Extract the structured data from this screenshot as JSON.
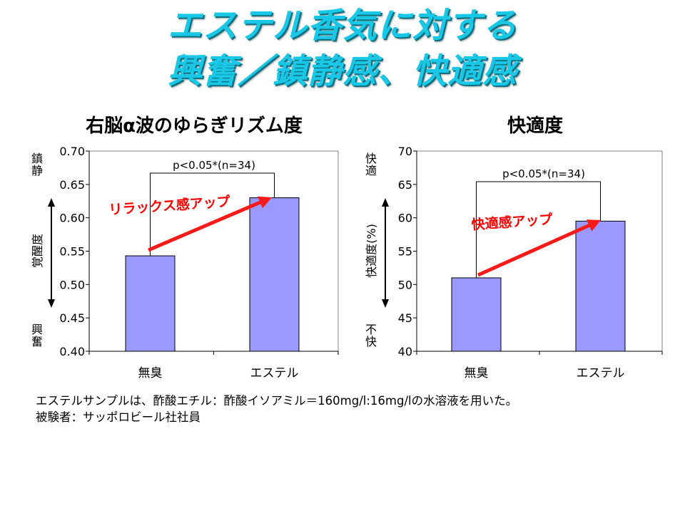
{
  "title": {
    "line1": "エステル香気に対する",
    "line2": "興奮／鎮静感、快適感",
    "color": "#19c8e6"
  },
  "colors": {
    "bar": "#9999ff",
    "bar_stroke": "#000000",
    "arrow": "#ff1a1a",
    "annotation": "#ff0000"
  },
  "chart_data": [
    {
      "type": "bar",
      "title": "右脳α波のゆらぎリズム度",
      "categories": [
        "無臭",
        "エステル"
      ],
      "values": [
        0.543,
        0.63
      ],
      "ylim": [
        0.4,
        0.7
      ],
      "yticks": [
        "0.40",
        "0.45",
        "0.50",
        "0.55",
        "0.60",
        "0.65",
        "0.70"
      ],
      "ylabel": "覚醒度",
      "ylabel_top": "鎮静",
      "ylabel_bottom": "興奮",
      "significance": "p<0.05*(n=34)",
      "annotation": "リラックス感アップ",
      "grid": false
    },
    {
      "type": "bar",
      "title": "快適度",
      "categories": [
        "無臭",
        "エステル"
      ],
      "values": [
        51,
        59.5
      ],
      "ylim": [
        40,
        70
      ],
      "yticks": [
        "40",
        "45",
        "50",
        "55",
        "60",
        "65",
        "70"
      ],
      "ylabel": "快適度(%)",
      "ylabel_top": "快適",
      "ylabel_bottom": "不快",
      "significance": "p<0.05*(n=34)",
      "annotation": "快適感アップ",
      "grid": false
    }
  ],
  "notes": {
    "line1": "エステルサンプルは、酢酸エチル：酢酸イソアミル＝160mg/l:16mg/lの水溶液を用いた。",
    "line2": "被験者：サッポロビール社社員"
  }
}
